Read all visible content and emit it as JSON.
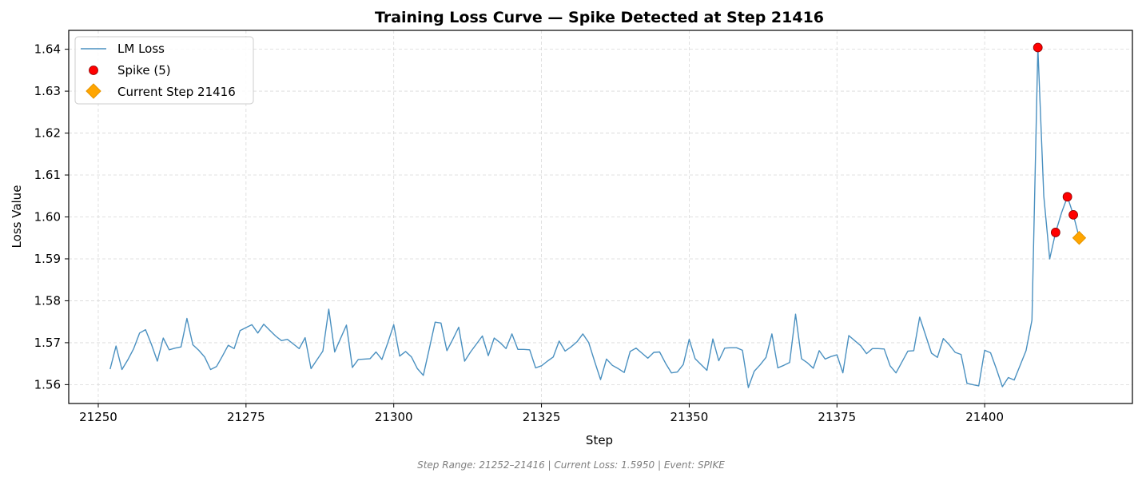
{
  "chart_data": {
    "type": "line",
    "title": "Training Loss Curve — Spike Detected at Step 21416",
    "xlabel": "Step",
    "ylabel": "Loss Value",
    "xlim": [
      21245,
      21425
    ],
    "ylim": [
      1.5555,
      1.6445
    ],
    "xticks": [
      "21250",
      "21275",
      "21300",
      "21325",
      "21350",
      "21375",
      "21400"
    ],
    "yticks": [
      "1.56",
      "1.57",
      "1.58",
      "1.59",
      "1.60",
      "1.61",
      "1.62",
      "1.63",
      "1.64"
    ],
    "grid": true,
    "legend_position": "top-left",
    "colors": {
      "line": "#4a90c0",
      "spike": "#ff0000",
      "current": "#ffa500"
    },
    "series": [
      {
        "name": "LM Loss",
        "kind": "line",
        "x": [
          21252,
          21253,
          21254,
          21255,
          21256,
          21257,
          21258,
          21259,
          21260,
          21261,
          21262,
          21263,
          21264,
          21265,
          21266,
          21267,
          21268,
          21269,
          21270,
          21271,
          21272,
          21273,
          21274,
          21275,
          21276,
          21277,
          21278,
          21279,
          21280,
          21281,
          21282,
          21283,
          21284,
          21285,
          21286,
          21287,
          21288,
          21289,
          21290,
          21291,
          21292,
          21293,
          21294,
          21295,
          21296,
          21297,
          21298,
          21299,
          21300,
          21301,
          21302,
          21303,
          21304,
          21305,
          21306,
          21307,
          21308,
          21309,
          21310,
          21311,
          21312,
          21313,
          21314,
          21315,
          21316,
          21317,
          21318,
          21319,
          21320,
          21321,
          21322,
          21323,
          21324,
          21325,
          21326,
          21327,
          21328,
          21329,
          21330,
          21331,
          21332,
          21333,
          21334,
          21335,
          21336,
          21337,
          21338,
          21339,
          21340,
          21341,
          21342,
          21343,
          21344,
          21345,
          21346,
          21347,
          21348,
          21349,
          21350,
          21351,
          21352,
          21353,
          21354,
          21355,
          21356,
          21357,
          21358,
          21359,
          21360,
          21361,
          21362,
          21363,
          21364,
          21365,
          21366,
          21367,
          21368,
          21369,
          21370,
          21371,
          21372,
          21373,
          21374,
          21375,
          21376,
          21377,
          21378,
          21379,
          21380,
          21381,
          21382,
          21383,
          21384,
          21385,
          21386,
          21387,
          21388,
          21389,
          21390,
          21391,
          21392,
          21393,
          21394,
          21395,
          21396,
          21397,
          21398,
          21399,
          21400,
          21401,
          21402,
          21403,
          21404,
          21405,
          21406,
          21407,
          21408,
          21409,
          21410,
          21411,
          21412,
          21413,
          21414,
          21415,
          21416
        ],
        "y": [
          1.5637,
          1.5692,
          1.5636,
          1.5659,
          1.5686,
          1.5723,
          1.5731,
          1.5696,
          1.5656,
          1.5711,
          1.5683,
          1.5687,
          1.569,
          1.5758,
          1.5695,
          1.5682,
          1.5666,
          1.5636,
          1.5643,
          1.5668,
          1.5694,
          1.5686,
          1.5729,
          1.5736,
          1.5743,
          1.5723,
          1.5744,
          1.573,
          1.5716,
          1.5705,
          1.5708,
          1.5697,
          1.5686,
          1.5712,
          1.5638,
          1.5659,
          1.568,
          1.578,
          1.5678,
          1.571,
          1.5742,
          1.5641,
          1.566,
          1.5661,
          1.5662,
          1.5678,
          1.566,
          1.57,
          1.5743,
          1.5668,
          1.5679,
          1.5666,
          1.5638,
          1.5622,
          1.5685,
          1.5749,
          1.5747,
          1.5681,
          1.5708,
          1.5737,
          1.5656,
          1.5678,
          1.5697,
          1.5716,
          1.5669,
          1.5711,
          1.57,
          1.5686,
          1.5721,
          1.5684,
          1.5684,
          1.5683,
          1.564,
          1.5645,
          1.5656,
          1.5666,
          1.5704,
          1.568,
          1.569,
          1.5702,
          1.5721,
          1.57,
          1.5655,
          1.5612,
          1.5661,
          1.5646,
          1.5638,
          1.5629,
          1.5679,
          1.5687,
          1.5675,
          1.5663,
          1.5677,
          1.5678,
          1.5651,
          1.5628,
          1.563,
          1.5648,
          1.5708,
          1.5662,
          1.5648,
          1.5634,
          1.5709,
          1.5657,
          1.5687,
          1.5688,
          1.5688,
          1.5682,
          1.5593,
          1.5632,
          1.5647,
          1.5665,
          1.5721,
          1.564,
          1.5646,
          1.5653,
          1.5768,
          1.5662,
          1.5652,
          1.5639,
          1.5681,
          1.5661,
          1.5667,
          1.5671,
          1.5628,
          1.5717,
          1.5705,
          1.5693,
          1.5674,
          1.5686,
          1.5686,
          1.5685,
          1.5645,
          1.5628,
          1.5654,
          1.568,
          1.5681,
          1.5761,
          1.5718,
          1.5675,
          1.5665,
          1.571,
          1.5695,
          1.5677,
          1.5672,
          1.5603,
          1.56,
          1.5597,
          1.5682,
          1.5676,
          1.5637,
          1.5595,
          1.5617,
          1.5611,
          1.5646,
          1.5681,
          1.5754,
          1.6404,
          1.605,
          1.59,
          1.5963,
          1.601,
          1.6048,
          1.6005,
          1.595
        ]
      },
      {
        "name": "Spike (5)",
        "kind": "scatter",
        "x": [
          21409,
          21412,
          21414,
          21415,
          21416
        ],
        "y": [
          1.6404,
          1.5963,
          1.6048,
          1.6005,
          1.595
        ]
      },
      {
        "name": "Current Step 21416",
        "kind": "marker",
        "x": [
          21416
        ],
        "y": [
          1.595
        ]
      }
    ],
    "footer": "Step Range: 21252–21416 | Current Loss: 1.5950 | Event: SPIKE"
  }
}
